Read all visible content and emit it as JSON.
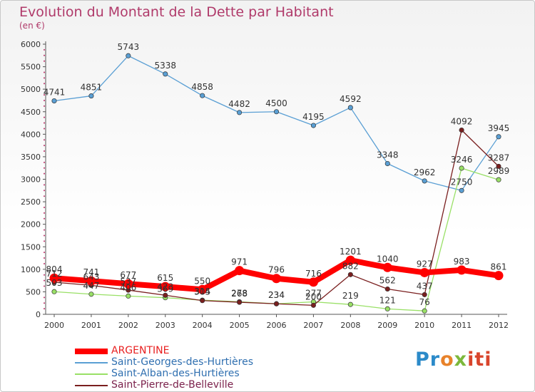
{
  "header": {
    "title": "Evolution du Montant de la Dette par Habitant",
    "unit": "(en €)"
  },
  "chart_data": {
    "type": "line",
    "title": "Evolution du Montant de la Dette par Habitant",
    "subtitle": "(en €)",
    "xlabel": "",
    "ylabel": "",
    "x": [
      "2000",
      "2001",
      "2002",
      "2003",
      "2004",
      "2005",
      "2006",
      "2007",
      "2008",
      "2009",
      "2010",
      "2011",
      "2012"
    ],
    "ylim": [
      0,
      6000
    ],
    "yticks": [
      0,
      500,
      1000,
      1500,
      2000,
      2500,
      3000,
      3500,
      4000,
      4500,
      5000,
      5500,
      6000
    ],
    "grid": false,
    "legend_position": "bottom-left",
    "series": [
      {
        "name": "ARGENTINE",
        "color": "#ff0000",
        "values": [
          804,
          741,
          677,
          615,
          550,
          971,
          796,
          716,
          1201,
          1040,
          927,
          983,
          861
        ],
        "labels": [
          "804",
          "741",
          "677",
          "615",
          "550",
          "971",
          "796",
          "716",
          "1201",
          "1040",
          "927",
          "983",
          "861"
        ]
      },
      {
        "name": "Saint-Georges-des-Hurtières",
        "color": "#5a9fd4",
        "values": [
          4741,
          4851,
          5743,
          5338,
          4858,
          4482,
          4500,
          4195,
          4592,
          3348,
          2962,
          2750,
          3945
        ],
        "labels": [
          "4741",
          "4851",
          "5743",
          "5338",
          "4858",
          "4482",
          "4500",
          "4195",
          "4592",
          "3348",
          "2962",
          "2750",
          "3945"
        ]
      },
      {
        "name": "Saint-Alban-des-Hurtières",
        "color": "#99e066",
        "values": [
          503,
          447,
          406,
          369,
          314,
          278,
          234,
          277,
          219,
          121,
          76,
          3246,
          2989
        ],
        "labels": [
          "503",
          "447",
          "406",
          "369",
          "314",
          "278",
          "234",
          "277",
          "219",
          "121",
          "76",
          "3246",
          "2989"
        ]
      },
      {
        "name": "Saint-Pierre-de-Belleville",
        "color": "#7a1f1f",
        "values": [
          712,
          643,
          537,
          423,
          305,
          268,
          234,
          200,
          882,
          562,
          437,
          4092,
          3287
        ],
        "labels": [
          "712",
          "643",
          "537",
          "423",
          "305",
          "268",
          "234",
          "200",
          "882",
          "562",
          "437",
          "4092",
          "3287"
        ]
      }
    ]
  },
  "logo": {
    "parts": [
      "Pr",
      "o",
      "x",
      "iti"
    ]
  }
}
